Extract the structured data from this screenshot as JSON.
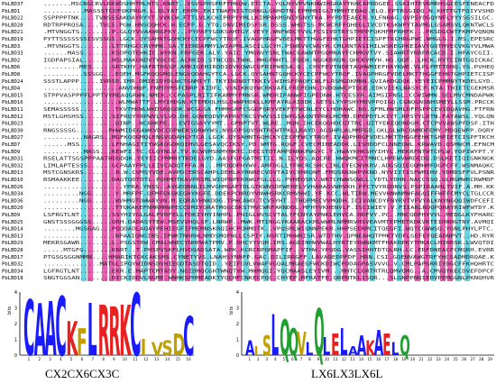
{
  "alignment": {
    "sequence_names": [
      "PbLBD37",
      "PbLBD1",
      "PbLBD22",
      "PbLBD20",
      "PbLBD21",
      "PbLBD19",
      "PbLBD3",
      "PbLBD33",
      "PbLBD2",
      "PbLBD6",
      "PbLBD8",
      "PbLBD24",
      "PbLBD4",
      "PbLBD15",
      "PbLBD16",
      "PbLBD11",
      "PbLBD12",
      "PbLBD23",
      "PbLBD30",
      "PbLBD27",
      "PbLBD7",
      "PbLBD9",
      "PbLBD31",
      "PbLBD32",
      "PbLBD13",
      "PbLBD10",
      "PbLBD26",
      "PbLBD34",
      "PbLBD36",
      "PbLBD20",
      "PbLBD9",
      "PbLBD25",
      "PbLBD14",
      "PbLBD13",
      "PbLBD29",
      "PbLBD28",
      "PbLBD17",
      "PbLBD32",
      "PbLBD34",
      "PbLBD18"
    ],
    "prefixes": [
      ".......MSCNGCRVLRK",
      "..........MASSS",
      "SSPPPPTNK....TVNSS",
      "RDTRPPRQSA....TVLS",
      ".MTVNGGTS........",
      "PYTTSSSSSSSISVSSGS",
      ".MTVNGGTS........",
      "......MASS.......",
      "IGDPAPSIAL.......",
      ".........MES.....",
      "..........SSSGG...",
      "SSSTLAPPP.....IVRS",
      "...................",
      "STPPVASPPPFLPPTV",
      "...................",
      "SEMASSSSS.........",
      "MSTLGHSHSS.......",
      "..................",
      "RNGSSSSG........",
      "..........NAGRS..",
      "......MSS........",
      "..........MASS...",
      "RSELATTSGSPPPAAT",
      "LIMLAPTESSS......",
      "MSTCGNSKRS.......",
      "RSMAAKKEE........",
      "..................",
      ".........NGG......",
      ".........NGG......",
      "..................",
      "LSFRGTLNT........",
      "GNSTSSSGGGSS.....",
      "........MGSGAG...",
      "..................",
      "MEKRSGAWR........",
      ".....MTGFG.......",
      "PTGSGSGGNMMN....",
      "..............MAT",
      "LGFRGTLNT........",
      "SNGTGGSAN........"
    ],
    "logo_left": {
      "letters": [
        "C",
        "A",
        "A",
        "C",
        "K",
        "F",
        "L",
        "R",
        "R",
        "K",
        "C",
        "I",
        "V",
        "S",
        "D",
        "C"
      ],
      "caption": "CX2CX6CX3C",
      "y_axis_label": "bits",
      "y_ticks": [
        "4",
        "3",
        "2",
        "1",
        "0"
      ],
      "x_ticks": [
        "1",
        "2",
        "3",
        "4",
        "5",
        "6",
        "7",
        "8",
        "9",
        "10",
        "11",
        "12",
        "13",
        "14",
        "15",
        "16"
      ]
    },
    "logo_right": {
      "letters": [
        "A",
        "I",
        "S",
        "L",
        "Q",
        "Q",
        "V",
        "L",
        "Q",
        "L",
        "E",
        "L",
        "A",
        "A",
        "K",
        "A",
        "E",
        "L",
        "Q"
      ],
      "caption": "LX6LX3LX6L",
      "y_axis_label": "bits",
      "y_ticks": [
        "4",
        "3",
        "2",
        "1",
        "0"
      ],
      "x_ticks": [
        "1",
        "2",
        "3",
        "4",
        "5",
        "6",
        "7",
        "8",
        "9",
        "10",
        "11",
        "12",
        "13",
        "14",
        "15",
        "16",
        "17",
        "18",
        "19",
        "20",
        "21",
        "22",
        "23",
        "24",
        "25",
        "26",
        "27",
        "28",
        "29"
      ]
    }
  },
  "colors": {
    "identical": "#e040a0",
    "similar": "#40c8d8",
    "letter_C": "#1a1aff",
    "letter_A": "#1a1aff",
    "letter_L": "#1a1aff",
    "letter_K": "#e82020",
    "letter_R": "#e82020",
    "letter_Q": "#20a030",
    "letter_E": "#e82020",
    "letter_other": "#c0a000"
  }
}
